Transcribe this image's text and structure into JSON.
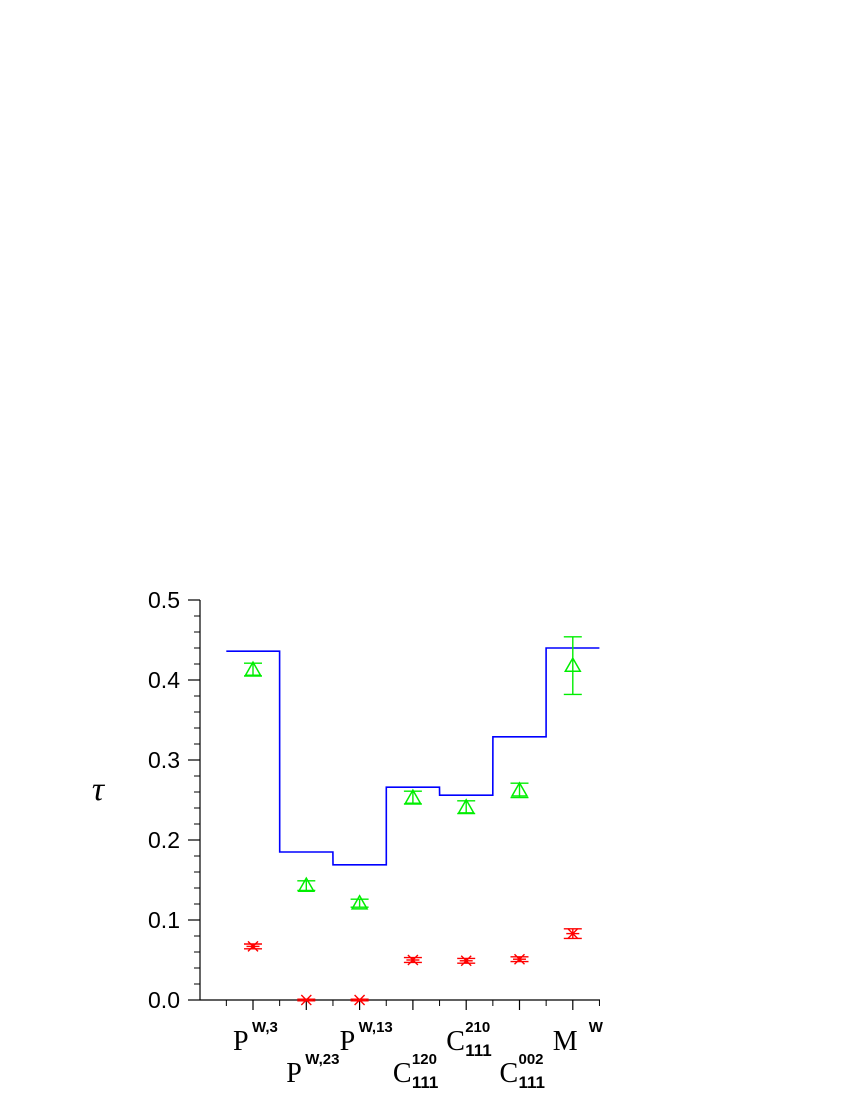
{
  "chart_data": {
    "type": "line",
    "title": "",
    "xlabel": "",
    "ylabel": "τ",
    "ylim": [
      0.0,
      0.5
    ],
    "yticks": [
      "0.0",
      "0.1",
      "0.2",
      "0.3",
      "0.4",
      "0.5"
    ],
    "categories": [
      {
        "base": "P",
        "sup": "W,3",
        "sub": ""
      },
      {
        "base": "P",
        "sup": "W,23",
        "sub": ""
      },
      {
        "base": "P",
        "sup": "W,13",
        "sub": ""
      },
      {
        "base": "C",
        "sup": "120",
        "sub": "111"
      },
      {
        "base": "C",
        "sup": "210",
        "sub": "111"
      },
      {
        "base": "C",
        "sup": "002",
        "sub": "111"
      },
      {
        "base": "M",
        "sup": "W",
        "sub": ""
      }
    ],
    "series": [
      {
        "style": "step",
        "color": "#0000ff",
        "values": [
          0.436,
          0.185,
          0.169,
          0.266,
          0.256,
          0.329,
          0.44
        ]
      },
      {
        "style": "triangle-errorbar",
        "color": "#00ee00",
        "values": [
          0.413,
          0.143,
          0.121,
          0.253,
          0.241,
          0.262,
          0.418
        ],
        "errors": [
          0.008,
          0.006,
          0.005,
          0.008,
          0.008,
          0.009,
          0.036
        ]
      },
      {
        "style": "star-errorbar",
        "color": "#ff0000",
        "values": [
          0.067,
          0.0,
          0.0,
          0.05,
          0.049,
          0.051,
          0.083
        ],
        "errors": [
          0.003,
          0.001,
          0.001,
          0.003,
          0.003,
          0.003,
          0.006
        ]
      }
    ]
  }
}
